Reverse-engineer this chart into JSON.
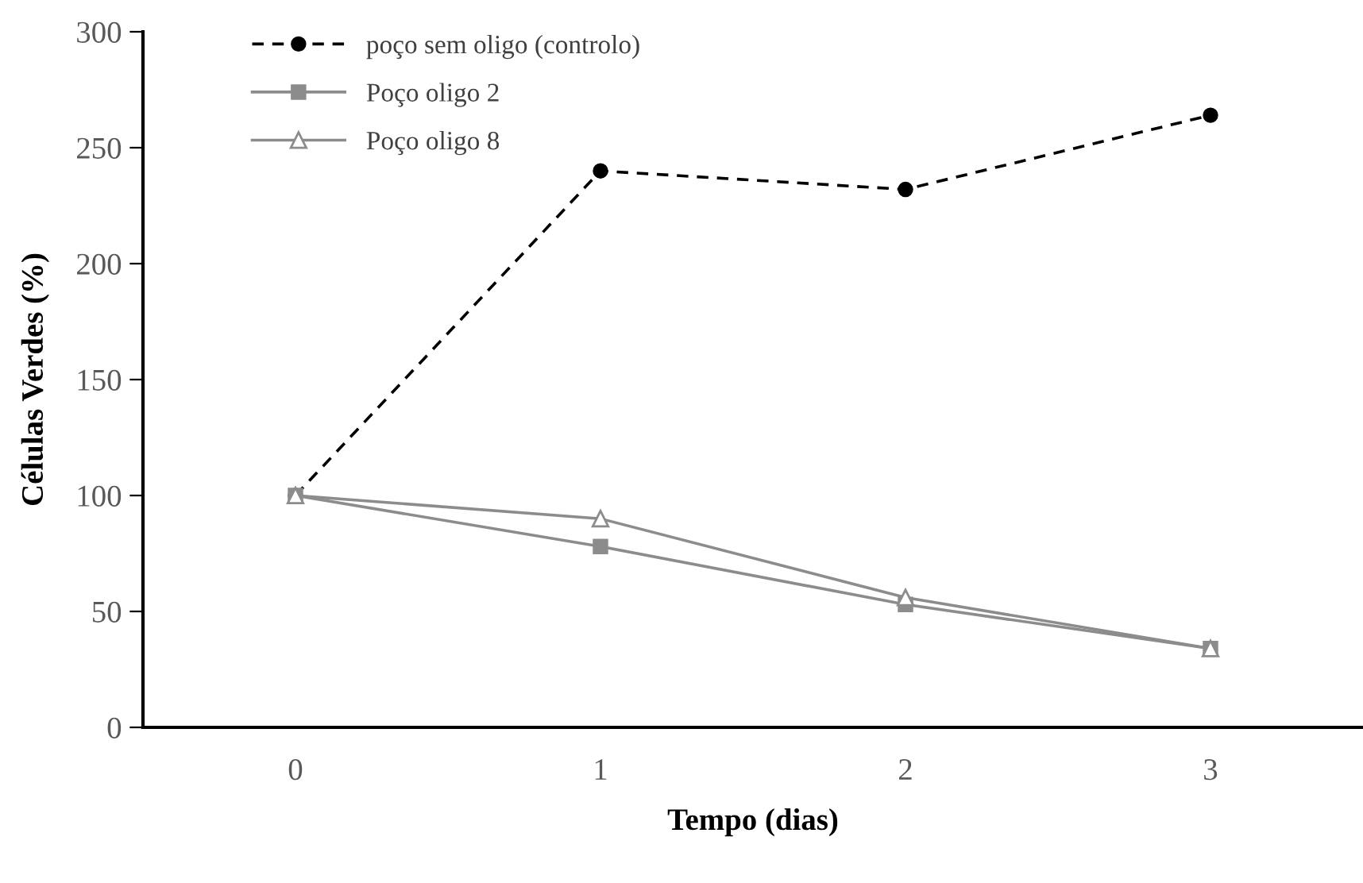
{
  "chart_data": {
    "type": "line",
    "xlabel": "Tempo (dias)",
    "ylabel": "Células Verdes (%)",
    "categories": [
      "0",
      "1",
      "2",
      "3"
    ],
    "series": [
      {
        "name": "poço sem oligo (controlo)",
        "color": "#000000",
        "values": [
          100,
          240,
          232,
          264
        ],
        "marker": "circle",
        "line_style": "dashed"
      },
      {
        "name": "Poço oligo 2",
        "color": "#8c8c8c",
        "values": [
          100,
          78,
          53,
          34
        ],
        "marker": "square",
        "line_style": "solid"
      },
      {
        "name": "Poço oligo 8",
        "color": "#8c8c8c",
        "values": [
          100,
          90,
          56,
          34
        ],
        "marker": "triangle",
        "line_style": "solid"
      }
    ],
    "ylim": [
      0,
      300
    ],
    "yticks": [
      0,
      50,
      100,
      150,
      200,
      250,
      300
    ],
    "grid": false,
    "legend": "top left"
  }
}
